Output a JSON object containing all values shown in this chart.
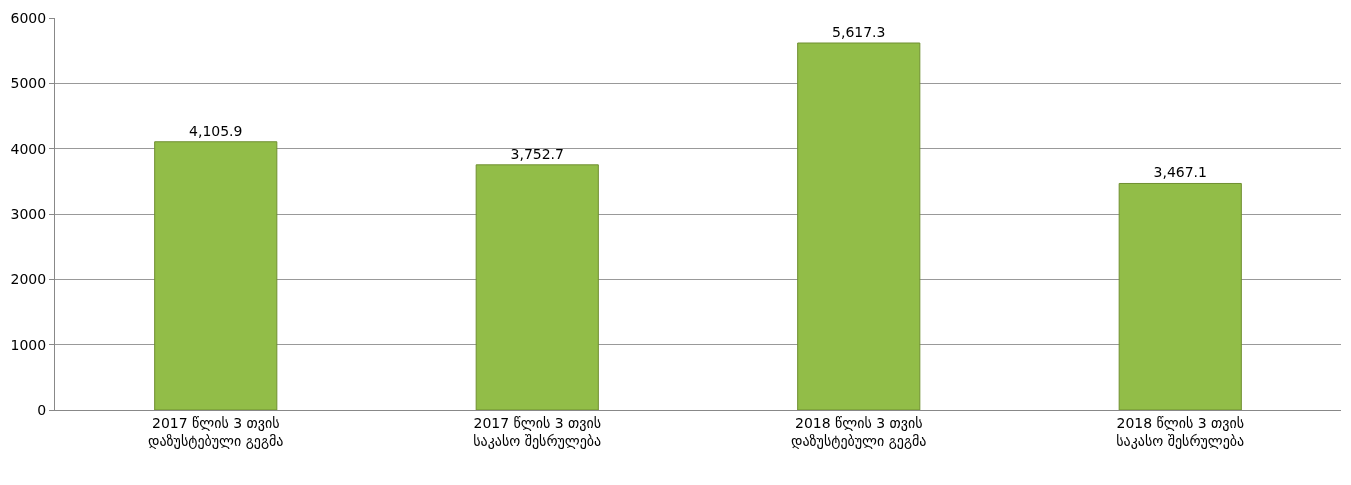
{
  "chart_data": {
    "type": "bar",
    "categories": [
      "2017 წლის 3 თვის დაზუსტებული გეგმა",
      "2017 წლის 3 თვის საკასო შესრულება",
      "2018 წლის 3 თვის დაზუსტებული გეგმა",
      "2018 წლის 3 თვის საკასო შესრულება"
    ],
    "values": [
      4105.9,
      3752.7,
      5617.3,
      3467.1
    ],
    "value_labels": [
      "4,105.9",
      "3,752.7",
      "5,617.3",
      "3,467.1"
    ],
    "color": "#92bd48",
    "ylim": [
      0,
      6000
    ],
    "yticks": [
      0,
      1000,
      2000,
      3000,
      4000,
      5000,
      6000
    ],
    "grid": "y",
    "legend": false
  }
}
